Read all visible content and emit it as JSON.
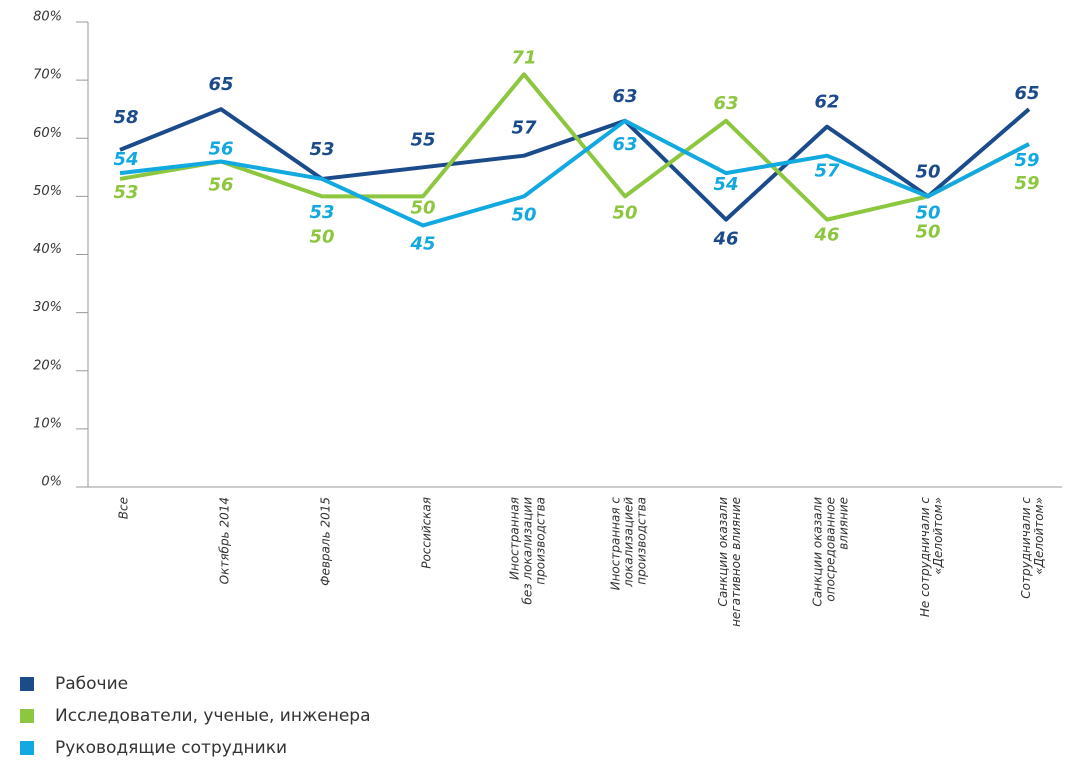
{
  "chart_data": {
    "type": "line",
    "categories": [
      [
        "Все"
      ],
      [
        "Октябрь 2014"
      ],
      [
        "Февраль 2015"
      ],
      [
        "Российская"
      ],
      [
        "Иностранная",
        "без локализации",
        "производства"
      ],
      [
        "Иностранная с",
        "локализацией",
        "производства"
      ],
      [
        "Санкции оказали",
        "негативное влияние"
      ],
      [
        "Санкции оказали",
        "опосредованное",
        "влияние"
      ],
      [
        "Не сотрудничали с",
        "«Делойтом»"
      ],
      [
        "Сотрудничали с",
        "«Делойтом»"
      ]
    ],
    "series": [
      {
        "name": "Рабочие",
        "color": "#1c4b8c",
        "values": [
          58,
          65,
          53,
          55,
          57,
          63,
          46,
          62,
          50,
          65
        ]
      },
      {
        "name": "Исследователи, ученые, инженера",
        "color": "#8dc63f",
        "values": [
          53,
          56,
          50,
          50,
          71,
          50,
          63,
          46,
          50,
          59
        ]
      },
      {
        "name": "Руководящие сотрудники",
        "color": "#12a8e0",
        "values": [
          54,
          56,
          53,
          45,
          50,
          63,
          54,
          57,
          50,
          59
        ]
      }
    ],
    "ylim": [
      0,
      80
    ],
    "yticks": [
      {
        "value": 0,
        "label": "0%"
      },
      {
        "value": 10,
        "label": "10%"
      },
      {
        "value": 20,
        "label": "20%"
      },
      {
        "value": 30,
        "label": "30%"
      },
      {
        "value": 40,
        "label": "40%"
      },
      {
        "value": 50,
        "label": "50%"
      },
      {
        "value": 60,
        "label": "60%"
      },
      {
        "value": 70,
        "label": "70%"
      },
      {
        "value": 80,
        "label": "80%"
      }
    ],
    "legend": "bottom-left"
  }
}
